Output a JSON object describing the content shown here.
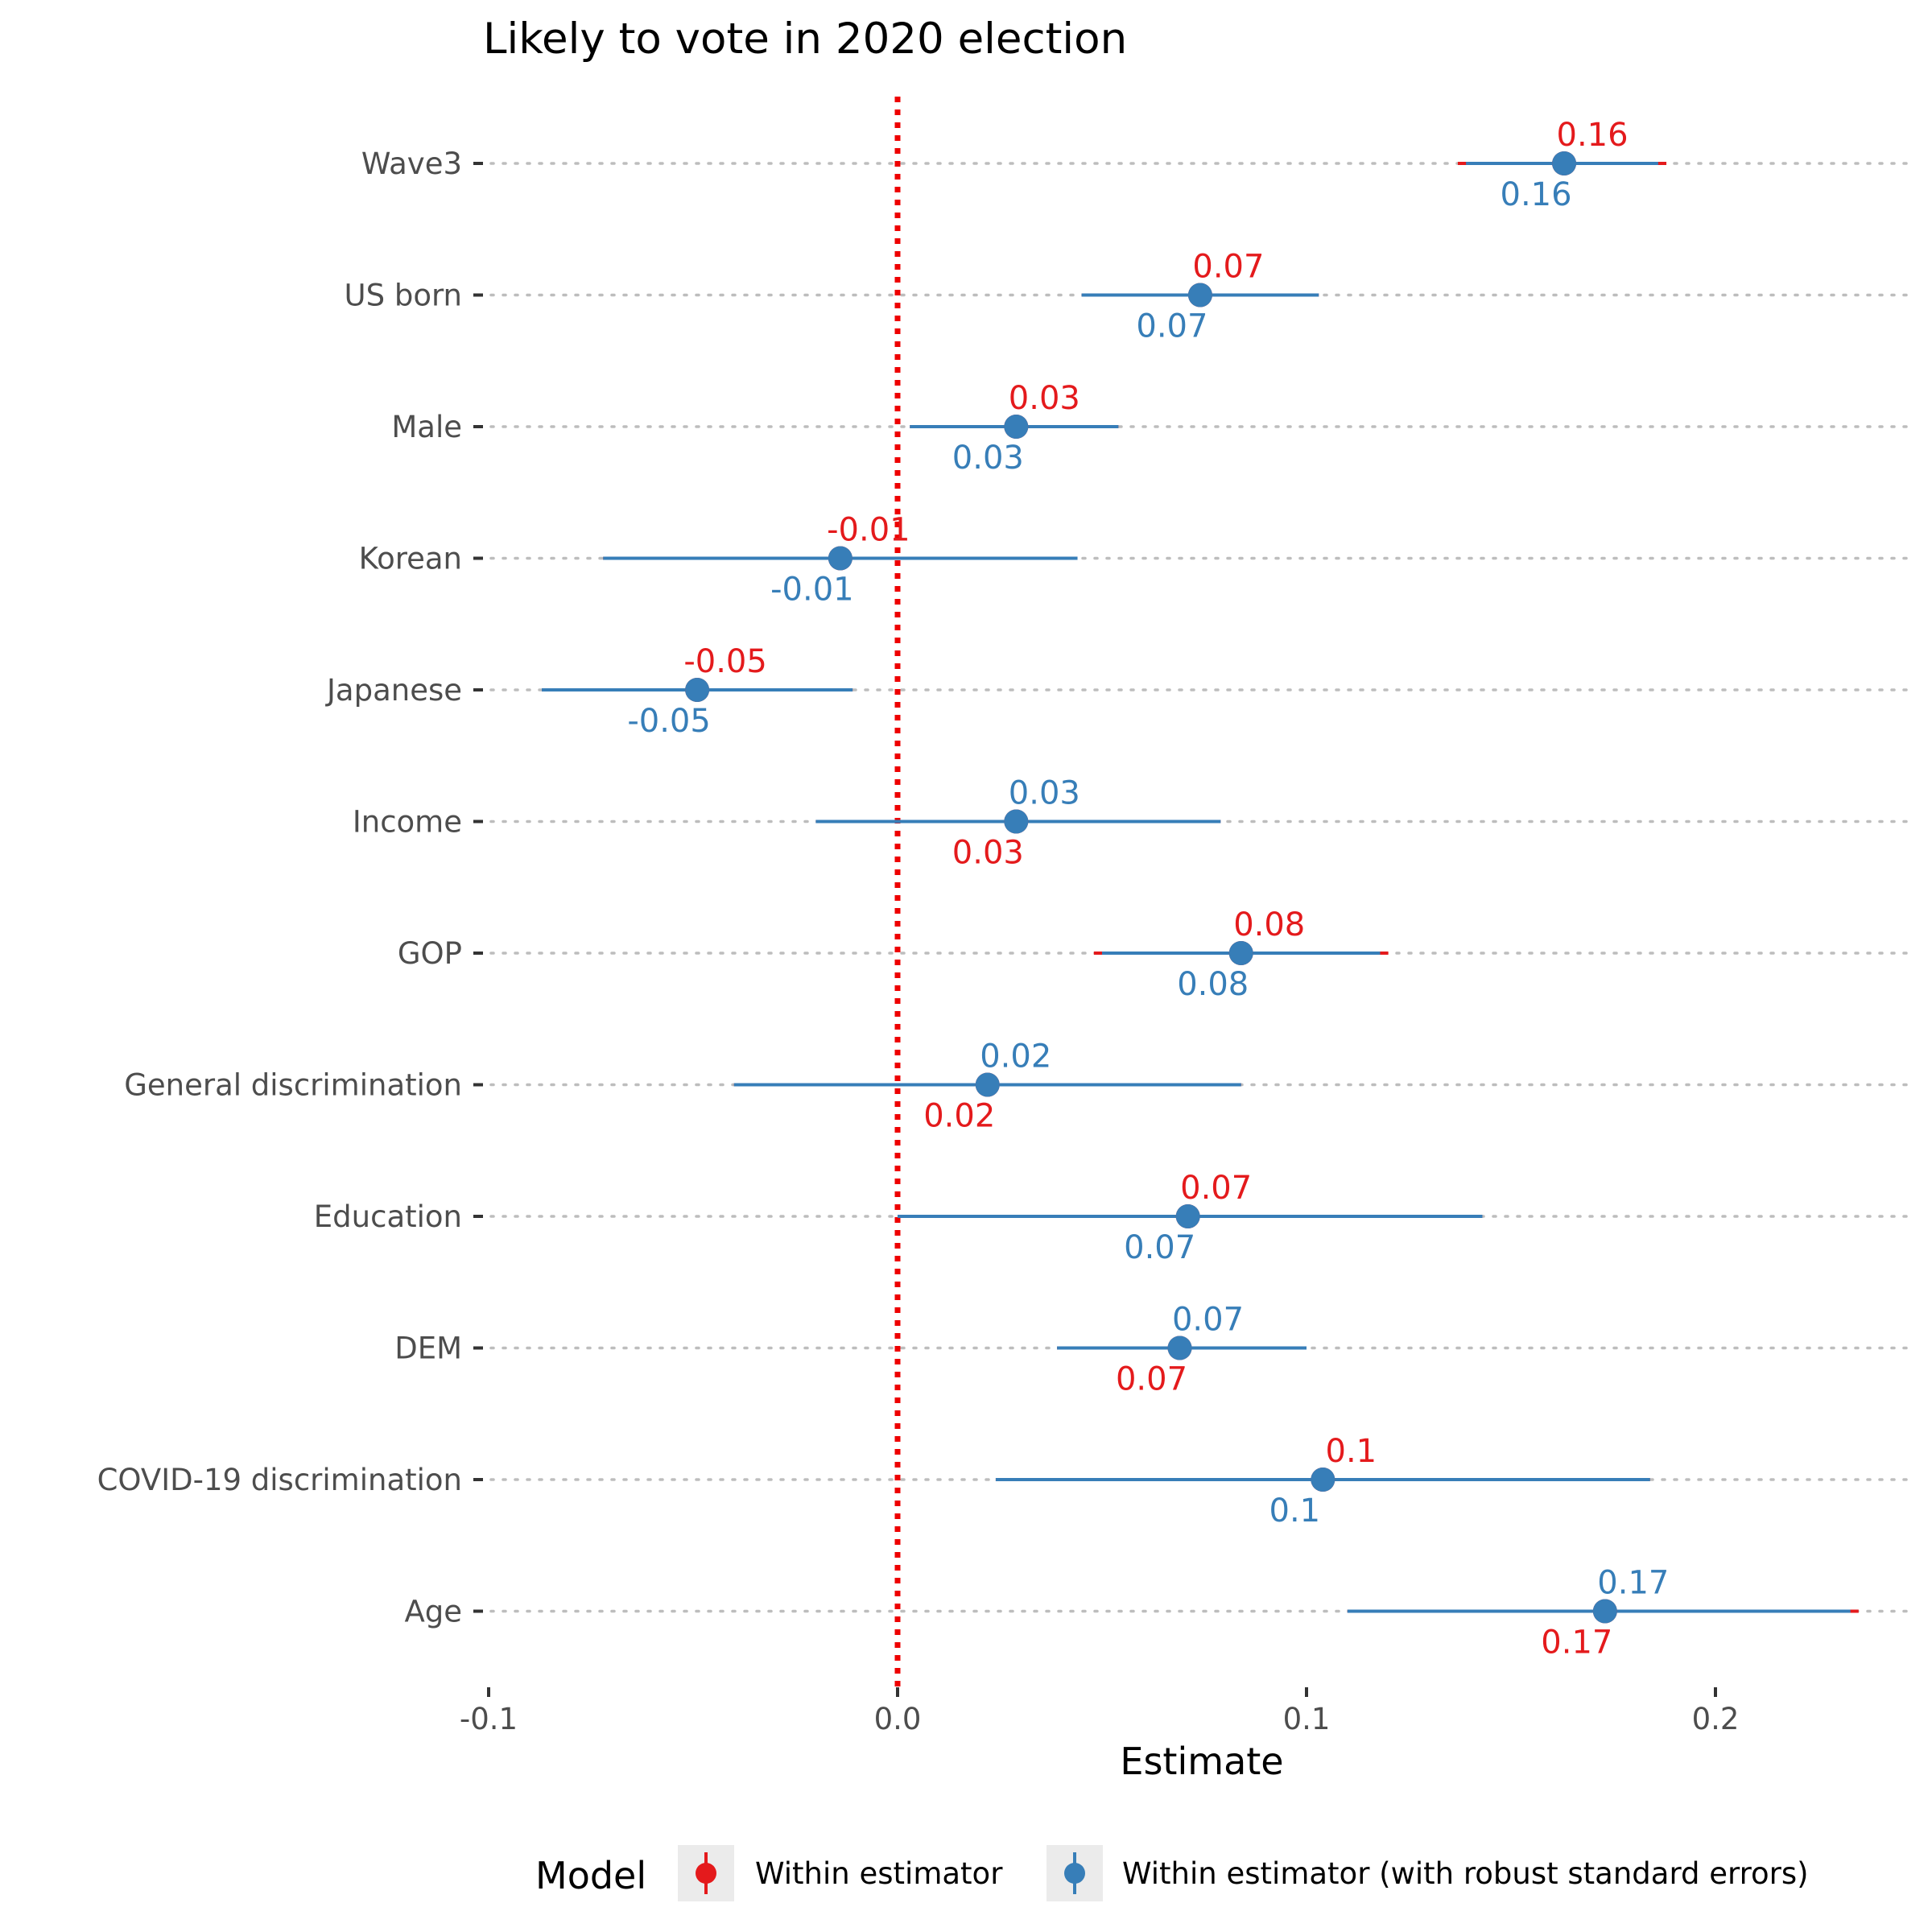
{
  "chart_data": {
    "type": "scatter",
    "title": "Likely to vote in 2020 election",
    "xlabel": "Estimate",
    "xlim": [
      -0.1,
      0.25
    ],
    "x_ticks": [
      {
        "value": -0.1,
        "label": "-0.1"
      },
      {
        "value": 0.0,
        "label": "0.0"
      },
      {
        "value": 0.1,
        "label": "0.1"
      },
      {
        "value": 0.2,
        "label": "0.2"
      }
    ],
    "reference_line": 0,
    "colors": {
      "within": "#e41a1c",
      "robust": "#377eb8",
      "reference": "#ee0000"
    },
    "legend": {
      "title": "Model",
      "placement": "bottom",
      "entries": [
        "Within estimator",
        "Within estimator (with robust standard errors)"
      ]
    },
    "rows": [
      {
        "term": "Wave3",
        "estimate": 0.163,
        "within_ci": [
          0.137,
          0.188
        ],
        "robust_ci": [
          0.139,
          0.186
        ],
        "within_label": "0.16",
        "robust_label": "0.16",
        "within_label_pos": "above",
        "robust_label_pos": "below"
      },
      {
        "term": "US born",
        "estimate": 0.074,
        "within_ci": [
          0.045,
          0.103
        ],
        "robust_ci": [
          0.045,
          0.103
        ],
        "within_label": "0.07",
        "robust_label": "0.07",
        "within_label_pos": "above",
        "robust_label_pos": "below"
      },
      {
        "term": "Male",
        "estimate": 0.029,
        "within_ci": [
          0.003,
          0.054
        ],
        "robust_ci": [
          0.003,
          0.054
        ],
        "within_label": "0.03",
        "robust_label": "0.03",
        "within_label_pos": "above",
        "robust_label_pos": "below"
      },
      {
        "term": "Korean",
        "estimate": -0.014,
        "within_ci": [
          -0.072,
          0.044
        ],
        "robust_ci": [
          -0.072,
          0.044
        ],
        "within_label": "-0.01",
        "robust_label": "-0.01",
        "within_label_pos": "above",
        "robust_label_pos": "below"
      },
      {
        "term": "Japanese",
        "estimate": -0.049,
        "within_ci": [
          -0.087,
          -0.011
        ],
        "robust_ci": [
          -0.087,
          -0.011
        ],
        "within_label": "-0.05",
        "robust_label": "-0.05",
        "within_label_pos": "above",
        "robust_label_pos": "below"
      },
      {
        "term": "Income",
        "estimate": 0.029,
        "within_ci": [
          -0.02,
          0.079
        ],
        "robust_ci": [
          -0.02,
          0.079
        ],
        "within_label": "0.03",
        "robust_label": "0.03",
        "within_label_pos": "below",
        "robust_label_pos": "above"
      },
      {
        "term": "GOP",
        "estimate": 0.084,
        "within_ci": [
          0.048,
          0.12
        ],
        "robust_ci": [
          0.05,
          0.118
        ],
        "within_label": "0.08",
        "robust_label": "0.08",
        "within_label_pos": "above",
        "robust_label_pos": "below"
      },
      {
        "term": "General discrimination",
        "estimate": 0.022,
        "within_ci": [
          -0.04,
          0.084
        ],
        "robust_ci": [
          -0.04,
          0.084
        ],
        "within_label": "0.02",
        "robust_label": "0.02",
        "within_label_pos": "below",
        "robust_label_pos": "above"
      },
      {
        "term": "Education",
        "estimate": 0.071,
        "within_ci": [
          0.0,
          0.143
        ],
        "robust_ci": [
          0.0,
          0.143
        ],
        "within_label": "0.07",
        "robust_label": "0.07",
        "within_label_pos": "above",
        "robust_label_pos": "below"
      },
      {
        "term": "DEM",
        "estimate": 0.069,
        "within_ci": [
          0.039,
          0.1
        ],
        "robust_ci": [
          0.039,
          0.1
        ],
        "within_label": "0.07",
        "robust_label": "0.07",
        "within_label_pos": "below",
        "robust_label_pos": "above"
      },
      {
        "term": "COVID-19 discrimination",
        "estimate": 0.104,
        "within_ci": [
          0.024,
          0.184
        ],
        "robust_ci": [
          0.024,
          0.184
        ],
        "within_label": "0.1",
        "robust_label": "0.1",
        "within_label_pos": "above",
        "robust_label_pos": "below"
      },
      {
        "term": "Age",
        "estimate": 0.173,
        "within_ci": [
          0.11,
          0.235
        ],
        "robust_ci": [
          0.11,
          0.233
        ],
        "within_label": "0.17",
        "robust_label": "0.17",
        "within_label_pos": "below",
        "robust_label_pos": "above"
      }
    ]
  }
}
